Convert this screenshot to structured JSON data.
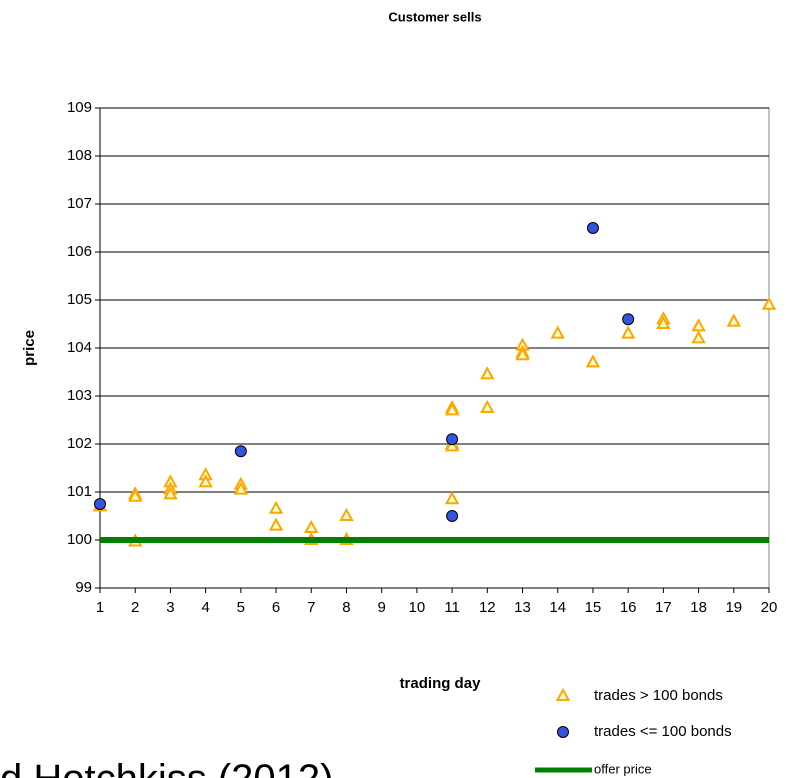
{
  "chart_data": {
    "type": "scatter",
    "title": "Customer sells",
    "x_label": "trading day",
    "y_label": "price",
    "xlim": [
      1,
      20
    ],
    "xticks": [
      1,
      2,
      3,
      4,
      5,
      6,
      7,
      8,
      9,
      10,
      11,
      12,
      13,
      14,
      15,
      16,
      17,
      18,
      19,
      20
    ],
    "ylim": [
      99,
      109
    ],
    "yticks": [
      99,
      100,
      101,
      102,
      103,
      104,
      105,
      106,
      107,
      108,
      109
    ],
    "grid": true,
    "legend": "bottom-right",
    "series": [
      {
        "name": "trades > 100 bonds",
        "type": "scatter",
        "marker": "triangle",
        "color": "#ffa500",
        "x": [
          1,
          2,
          2,
          2,
          3,
          3,
          3,
          4,
          4,
          5,
          5,
          6,
          6,
          7,
          7,
          8,
          8,
          11,
          11,
          11,
          11,
          11,
          12,
          12,
          13,
          13,
          13,
          14,
          15,
          16,
          17,
          17,
          18,
          18,
          19,
          20
        ],
        "values": [
          100.7,
          100.95,
          100.9,
          99.97,
          101.2,
          101.05,
          100.95,
          101.35,
          101.2,
          101.15,
          101.05,
          100.65,
          100.3,
          100.25,
          100.0,
          100.5,
          100.0,
          102.75,
          102.7,
          102.0,
          101.95,
          100.85,
          103.45,
          102.75,
          104.05,
          103.9,
          103.85,
          104.3,
          103.7,
          104.3,
          104.6,
          104.5,
          104.45,
          104.2,
          104.55,
          104.9
        ]
      },
      {
        "name": "trades <= 100 bonds",
        "type": "scatter",
        "marker": "circle",
        "color": "#3355dd",
        "x": [
          1,
          5,
          11,
          11,
          15,
          16
        ],
        "values": [
          100.75,
          101.85,
          102.1,
          100.5,
          106.5,
          104.6
        ]
      },
      {
        "name": "offer price",
        "type": "line",
        "color": "#008000",
        "x": [
          1,
          20
        ],
        "values": [
          100,
          100
        ]
      }
    ],
    "annotation": "d Hotchkiss (2012)"
  }
}
